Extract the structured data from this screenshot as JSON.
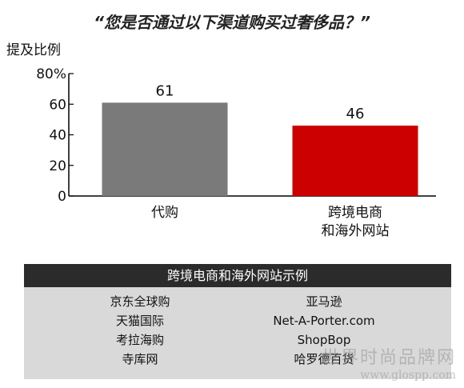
{
  "chart_data": {
    "type": "bar",
    "title": "“您是否通过以下渠道购买过奢侈品？”",
    "ylabel": "提及比例",
    "categories": [
      "代购",
      "跨境电商\n和海外网站"
    ],
    "values": [
      61,
      46
    ],
    "data_labels": [
      "61",
      "46"
    ],
    "colors": [
      "#7a7a7a",
      "#cc0000"
    ],
    "ylim": [
      0,
      80
    ],
    "yticks": [
      "0",
      "20",
      "40",
      "60",
      "80%"
    ],
    "ytick_values": [
      0,
      20,
      40,
      60,
      80
    ],
    "grid": false
  },
  "legend_panel": {
    "header": "跨境电商和海外网站示例",
    "left_items": [
      "京东全球购",
      "天猫国际",
      "考拉海购",
      "寺库网"
    ],
    "right_items": [
      "亚马逊",
      "Net-A-Porter.com",
      "ShopBop",
      "哈罗德百货"
    ]
  },
  "watermark": {
    "line1": "世界时尚品牌网",
    "line2": "www.glospp.com"
  }
}
